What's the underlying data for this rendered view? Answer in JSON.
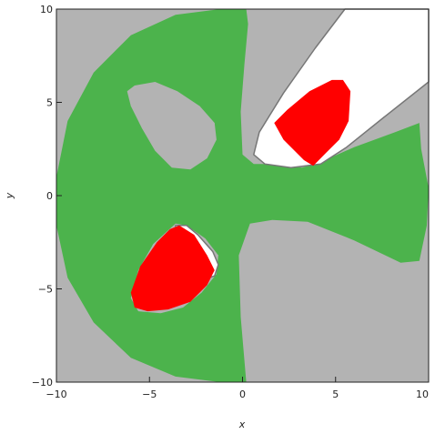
{
  "chart_data": {
    "type": "region_plot",
    "xlabel": "x",
    "ylabel": "y",
    "xlim": [
      -10,
      10
    ],
    "ylim": [
      -10,
      10
    ],
    "xticks": [
      -10,
      -5,
      0,
      5,
      10
    ],
    "yticks": [
      -10,
      -5,
      0,
      5,
      10
    ],
    "xtick_labels": [
      "−10",
      "−5",
      "0",
      "5",
      "10"
    ],
    "ytick_labels": [
      "−10",
      "−5",
      "0",
      "5",
      "10"
    ],
    "grid": false,
    "colors": {
      "background": "#b3b3b3",
      "green_region": "#4cb34c",
      "red_region": "#ff0000",
      "white_region": "#ffffff",
      "boundary": "#777777"
    },
    "regions": [
      {
        "fill": "green_region",
        "points": [
          [
            0.2,
            10
          ],
          [
            -1.2,
            10
          ],
          [
            -3.6,
            9.7
          ],
          [
            -6.0,
            8.6
          ],
          [
            -8.0,
            6.6
          ],
          [
            -9.4,
            4.0
          ],
          [
            -10,
            1.0
          ],
          [
            -10,
            -1.6
          ],
          [
            -9.4,
            -4.4
          ],
          [
            -8.0,
            -6.8
          ],
          [
            -6.0,
            -8.7
          ],
          [
            -3.6,
            -9.7
          ],
          [
            -1.2,
            -10
          ],
          [
            0.2,
            -10
          ],
          [
            -0.1,
            -6.5
          ],
          [
            -0.2,
            -3.2
          ],
          [
            0.4,
            -1.5
          ],
          [
            1.6,
            -1.3
          ],
          [
            3.5,
            -1.4
          ],
          [
            6.0,
            -2.4
          ],
          [
            8.5,
            -3.6
          ],
          [
            9.5,
            -3.5
          ],
          [
            9.9,
            -1.6
          ],
          [
            10,
            0.4
          ],
          [
            9.6,
            2.5
          ],
          [
            9.5,
            3.9
          ],
          [
            8.2,
            3.4
          ],
          [
            6.0,
            2.6
          ],
          [
            4.2,
            1.8
          ],
          [
            3.2,
            1.5
          ],
          [
            2.0,
            1.7
          ],
          [
            0.6,
            1.7
          ],
          [
            0.0,
            2.2
          ],
          [
            -0.1,
            4.5
          ],
          [
            0.1,
            7.0
          ],
          [
            0.3,
            9.2
          ],
          [
            0.2,
            10
          ]
        ]
      },
      {
        "fill": "background",
        "points": [
          [
            -5.8,
            5.9
          ],
          [
            -4.7,
            6.1
          ],
          [
            -3.5,
            5.6
          ],
          [
            -2.3,
            4.8
          ],
          [
            -1.5,
            3.9
          ],
          [
            -1.4,
            3.0
          ],
          [
            -1.9,
            2.0
          ],
          [
            -2.8,
            1.4
          ],
          [
            -3.8,
            1.5
          ],
          [
            -4.7,
            2.4
          ],
          [
            -5.4,
            3.6
          ],
          [
            -6.0,
            4.8
          ],
          [
            -6.2,
            5.6
          ],
          [
            -5.8,
            5.9
          ]
        ]
      },
      {
        "fill": "background",
        "points": [
          [
            -3.6,
            -1.5
          ],
          [
            -3.0,
            -1.6
          ],
          [
            -2.0,
            -2.3
          ],
          [
            -1.3,
            -3.2
          ],
          [
            -1.4,
            -4.2
          ],
          [
            -2.2,
            -5.2
          ],
          [
            -3.2,
            -6.0
          ],
          [
            -4.4,
            -6.3
          ],
          [
            -5.6,
            -6.2
          ],
          [
            -6.0,
            -5.5
          ],
          [
            -5.6,
            -4.0
          ],
          [
            -4.8,
            -2.6
          ],
          [
            -3.6,
            -1.5
          ]
        ]
      },
      {
        "fill": "white_region",
        "stroke": "boundary",
        "points": [
          [
            5.5,
            10
          ],
          [
            10,
            10
          ],
          [
            10,
            6.1
          ],
          [
            7.6,
            4.2
          ],
          [
            5.6,
            2.6
          ],
          [
            4.2,
            1.7
          ],
          [
            2.6,
            1.5
          ],
          [
            1.2,
            1.7
          ],
          [
            0.6,
            2.2
          ],
          [
            0.9,
            3.4
          ],
          [
            2.2,
            5.5
          ],
          [
            3.9,
            7.9
          ],
          [
            5.5,
            10
          ]
        ]
      },
      {
        "fill": "red_region",
        "points": [
          [
            1.7,
            3.9
          ],
          [
            2.4,
            4.6
          ],
          [
            3.6,
            5.6
          ],
          [
            4.8,
            6.2
          ],
          [
            5.4,
            6.2
          ],
          [
            5.8,
            5.6
          ],
          [
            5.7,
            4.0
          ],
          [
            5.2,
            3.0
          ],
          [
            4.5,
            2.3
          ],
          [
            3.8,
            1.6
          ],
          [
            3.3,
            1.9
          ],
          [
            2.2,
            3.0
          ],
          [
            1.7,
            3.9
          ]
        ]
      },
      {
        "fill": "white_region",
        "stroke": "boundary",
        "points": [
          [
            -3.6,
            -1.6
          ],
          [
            -3.0,
            -1.6
          ],
          [
            -2.4,
            -2.1
          ],
          [
            -1.6,
            -3.0
          ],
          [
            -1.3,
            -3.7
          ],
          [
            -1.5,
            -4.3
          ],
          [
            -2.4,
            -4.6
          ],
          [
            -3.6,
            -3.0
          ],
          [
            -3.6,
            -1.6
          ]
        ]
      },
      {
        "fill": "red_region",
        "points": [
          [
            -3.4,
            -1.6
          ],
          [
            -2.6,
            -2.1
          ],
          [
            -1.9,
            -3.2
          ],
          [
            -1.5,
            -4.0
          ],
          [
            -1.9,
            -4.8
          ],
          [
            -2.8,
            -5.7
          ],
          [
            -4.0,
            -6.1
          ],
          [
            -5.1,
            -6.2
          ],
          [
            -5.8,
            -6.0
          ],
          [
            -6.0,
            -5.2
          ],
          [
            -5.5,
            -3.8
          ],
          [
            -4.6,
            -2.5
          ],
          [
            -3.9,
            -1.8
          ],
          [
            -3.4,
            -1.6
          ]
        ]
      }
    ]
  }
}
